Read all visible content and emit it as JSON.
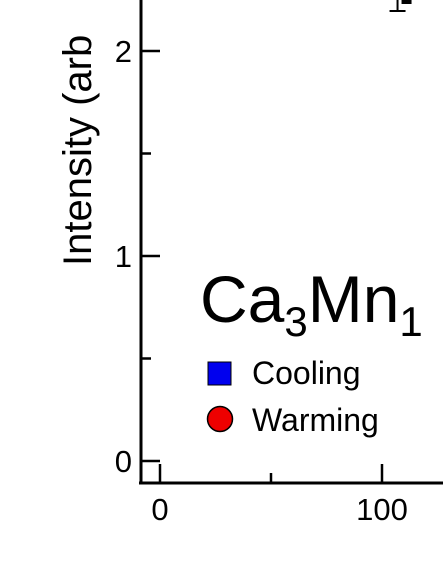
{
  "chart_data": {
    "type": "scatter",
    "title": "",
    "ylabel": "Intensity (arb",
    "xlabel": "",
    "xlim": [
      -8,
      128
    ],
    "ylim": [
      -0.12,
      2.55
    ],
    "x_ticks": [
      0,
      100
    ],
    "x_tick_labels": [
      "0",
      "100"
    ],
    "x_minor_ticks": [
      0,
      50,
      100
    ],
    "y_ticks": [
      0,
      1,
      2
    ],
    "y_tick_labels": [
      "0",
      "1",
      "2"
    ],
    "y_minor_ticks": [
      0.5,
      1.5
    ],
    "grid": false,
    "annotation": {
      "text_main": "Ca",
      "sub1": "3",
      "text_mid": "Mn",
      "sub2": "1"
    },
    "legend_position": "bottom-left",
    "series": [
      {
        "name": "Cooling",
        "marker": "square",
        "color": "#0000ee",
        "points": []
      },
      {
        "name": "Warming",
        "marker": "circle",
        "color": "#ee0000",
        "points": []
      }
    ],
    "partial_marks": [
      {
        "x": 107,
        "y": 2.5,
        "error": 0.05
      }
    ]
  }
}
